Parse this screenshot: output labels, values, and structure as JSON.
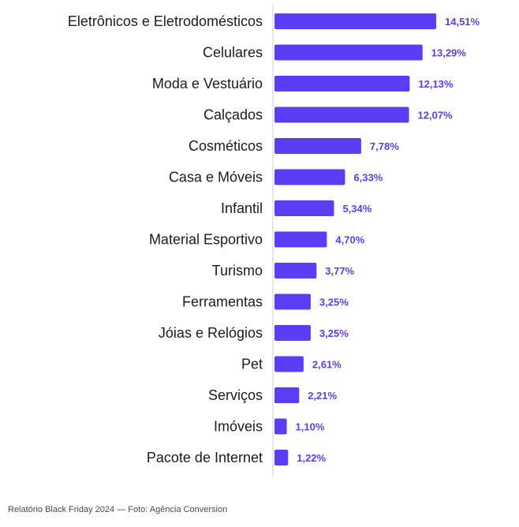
{
  "chart_data": {
    "type": "bar",
    "orientation": "horizontal",
    "title": "",
    "xlabel": "",
    "ylabel": "",
    "xlim": [
      0,
      14.51
    ],
    "grid": false,
    "value_suffix": "%",
    "categories": [
      "Eletrônicos e Eletrodomésticos",
      "Celulares",
      "Moda e Vestuário",
      "Calçados",
      "Cosméticos",
      "Casa e Móveis",
      "Infantil",
      "Material Esportivo",
      "Turismo",
      "Ferramentas",
      "Jóias e Relógios",
      "Pet",
      "Serviços",
      "Imóveis",
      "Pacote de Internet"
    ],
    "values": [
      14.51,
      13.29,
      12.13,
      12.07,
      7.78,
      6.33,
      5.34,
      4.7,
      3.77,
      3.25,
      3.25,
      2.61,
      2.21,
      1.1,
      1.22
    ],
    "value_labels": [
      "14,51%",
      "13,29%",
      "12,13%",
      "12,07%",
      "7,78%",
      "6,33%",
      "5,34%",
      "4,70%",
      "3,77%",
      "3,25%",
      "3,25%",
      "2,61%",
      "2,21%",
      "1,10%",
      "1,22%"
    ],
    "bar_color": "#5b3df5",
    "label_color": "#5b3df5",
    "axis_color": "#cfcfcf"
  },
  "caption": "Relatório Black Friday 2024 — Foto: Agência Conversion"
}
